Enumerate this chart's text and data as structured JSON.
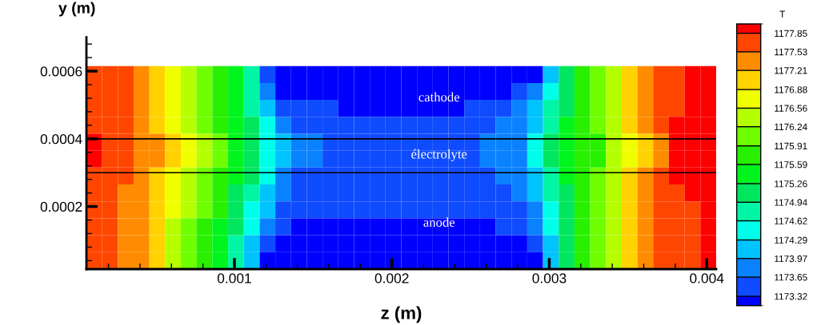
{
  "chart_data": {
    "type": "heatmap",
    "xlabel": "z (m)",
    "ylabel": "y (m)",
    "clabel": "T",
    "x": [
      0.00011,
      0.00021,
      0.00031,
      0.00041,
      0.00051,
      0.00061,
      0.00071,
      0.00081,
      0.00091,
      0.00101,
      0.00111,
      0.00121,
      0.00131,
      0.00141,
      0.00151,
      0.00161,
      0.00171,
      0.00181,
      0.00191,
      0.00201,
      0.00211,
      0.00221,
      0.00231,
      0.00241,
      0.00251,
      0.00261,
      0.00271,
      0.00281,
      0.00291,
      0.00301,
      0.00311,
      0.00321,
      0.00331,
      0.00341,
      0.00351,
      0.00361,
      0.00371,
      0.00381,
      0.00391,
      0.00401
    ],
    "y": [
      0.00059,
      0.00054,
      0.00049,
      0.00044,
      0.00039,
      0.00034,
      0.00029,
      0.00024,
      0.00019,
      0.00014,
      9e-05,
      4e-05
    ],
    "cells": [
      [
        1177.69,
        1177.69,
        1177.69,
        1177.37,
        1177.05,
        1176.72,
        1176.4,
        1176.08,
        1175.75,
        1175.43,
        1174.78,
        1173.49,
        1173.24,
        1173.24,
        1173.24,
        1173.24,
        1173.24,
        1173.24,
        1173.24,
        1173.24,
        1173.24,
        1173.24,
        1173.24,
        1173.24,
        1173.24,
        1173.24,
        1173.24,
        1173.24,
        1173.24,
        1174.13,
        1175.1,
        1175.75,
        1176.08,
        1176.4,
        1177.05,
        1177.37,
        1177.69,
        1177.69,
        1177.93,
        1177.93
      ],
      [
        1177.69,
        1177.69,
        1177.69,
        1177.37,
        1177.05,
        1176.72,
        1176.4,
        1176.08,
        1175.75,
        1175.43,
        1174.78,
        1173.81,
        1173.24,
        1173.24,
        1173.24,
        1173.24,
        1173.24,
        1173.24,
        1173.24,
        1173.24,
        1173.24,
        1173.24,
        1173.24,
        1173.24,
        1173.24,
        1173.24,
        1173.24,
        1173.49,
        1173.81,
        1174.46,
        1175.1,
        1175.75,
        1176.08,
        1176.4,
        1177.05,
        1177.37,
        1177.69,
        1177.69,
        1177.93,
        1177.93
      ],
      [
        1177.69,
        1177.69,
        1177.69,
        1177.37,
        1177.05,
        1176.72,
        1176.4,
        1176.08,
        1175.75,
        1175.43,
        1174.78,
        1174.13,
        1173.49,
        1173.49,
        1173.49,
        1173.49,
        1173.24,
        1173.24,
        1173.24,
        1173.24,
        1173.24,
        1173.24,
        1173.24,
        1173.24,
        1173.49,
        1173.49,
        1173.49,
        1173.81,
        1174.13,
        1174.78,
        1175.1,
        1175.75,
        1176.08,
        1176.4,
        1177.05,
        1177.37,
        1177.69,
        1177.69,
        1177.93,
        1177.93
      ],
      [
        1177.69,
        1177.69,
        1177.69,
        1177.37,
        1177.05,
        1176.72,
        1176.4,
        1176.08,
        1175.75,
        1175.43,
        1175.1,
        1174.46,
        1173.81,
        1173.49,
        1173.49,
        1173.49,
        1173.49,
        1173.49,
        1173.49,
        1173.49,
        1173.49,
        1173.49,
        1173.49,
        1173.49,
        1173.49,
        1173.49,
        1173.81,
        1173.81,
        1174.13,
        1174.78,
        1175.43,
        1175.75,
        1176.08,
        1176.4,
        1177.05,
        1177.37,
        1177.69,
        1177.93,
        1177.93,
        1177.93
      ],
      [
        1177.93,
        1177.69,
        1177.69,
        1177.37,
        1177.37,
        1177.05,
        1176.72,
        1176.4,
        1176.08,
        1175.43,
        1175.1,
        1174.46,
        1174.13,
        1173.81,
        1173.81,
        1173.49,
        1173.49,
        1173.49,
        1173.49,
        1173.49,
        1173.49,
        1173.49,
        1173.49,
        1173.49,
        1173.49,
        1173.81,
        1173.81,
        1173.81,
        1174.46,
        1175.1,
        1175.43,
        1175.75,
        1175.75,
        1176.4,
        1176.72,
        1177.05,
        1177.37,
        1177.93,
        1177.93,
        1177.93
      ],
      [
        1177.93,
        1177.69,
        1177.69,
        1177.37,
        1177.37,
        1177.05,
        1176.72,
        1176.4,
        1176.08,
        1175.43,
        1175.1,
        1174.46,
        1174.13,
        1173.81,
        1173.81,
        1173.49,
        1173.49,
        1173.49,
        1173.49,
        1173.49,
        1173.49,
        1173.49,
        1173.49,
        1173.49,
        1173.49,
        1173.81,
        1173.81,
        1173.81,
        1174.46,
        1175.1,
        1175.43,
        1175.75,
        1175.75,
        1176.4,
        1176.72,
        1177.05,
        1177.37,
        1177.93,
        1177.93,
        1177.93
      ],
      [
        1177.69,
        1177.69,
        1177.69,
        1177.37,
        1177.05,
        1176.72,
        1176.4,
        1176.08,
        1175.75,
        1175.43,
        1175.1,
        1174.46,
        1173.81,
        1173.49,
        1173.49,
        1173.49,
        1173.49,
        1173.49,
        1173.49,
        1173.49,
        1173.49,
        1173.49,
        1173.49,
        1173.49,
        1173.49,
        1173.49,
        1173.81,
        1173.81,
        1174.13,
        1174.78,
        1175.43,
        1175.75,
        1176.08,
        1176.4,
        1177.05,
        1177.37,
        1177.69,
        1177.93,
        1177.93,
        1177.93
      ],
      [
        1177.69,
        1177.69,
        1177.37,
        1177.37,
        1177.05,
        1176.72,
        1176.4,
        1176.08,
        1175.75,
        1175.1,
        1174.78,
        1174.13,
        1173.81,
        1173.49,
        1173.49,
        1173.49,
        1173.49,
        1173.49,
        1173.49,
        1173.49,
        1173.49,
        1173.49,
        1173.49,
        1173.49,
        1173.49,
        1173.49,
        1173.49,
        1173.81,
        1174.13,
        1174.78,
        1175.1,
        1175.75,
        1176.08,
        1176.4,
        1177.05,
        1177.37,
        1177.69,
        1177.69,
        1177.93,
        1177.93
      ],
      [
        1177.69,
        1177.69,
        1177.37,
        1177.37,
        1177.05,
        1176.72,
        1176.4,
        1176.08,
        1175.75,
        1175.1,
        1174.46,
        1174.13,
        1173.49,
        1173.49,
        1173.49,
        1173.49,
        1173.49,
        1173.49,
        1173.49,
        1173.49,
        1173.49,
        1173.49,
        1173.49,
        1173.49,
        1173.49,
        1173.49,
        1173.49,
        1173.49,
        1173.81,
        1174.46,
        1175.1,
        1175.75,
        1176.08,
        1176.4,
        1177.05,
        1177.37,
        1177.69,
        1177.69,
        1177.69,
        1177.93
      ],
      [
        1177.69,
        1177.69,
        1177.37,
        1177.37,
        1177.05,
        1176.4,
        1176.08,
        1175.75,
        1175.43,
        1175.1,
        1174.46,
        1173.81,
        1173.49,
        1173.24,
        1173.24,
        1173.24,
        1173.24,
        1173.24,
        1173.24,
        1173.24,
        1173.24,
        1173.24,
        1173.24,
        1173.24,
        1173.24,
        1173.24,
        1173.49,
        1173.49,
        1173.81,
        1174.46,
        1175.1,
        1175.75,
        1176.08,
        1176.4,
        1177.05,
        1177.37,
        1177.69,
        1177.69,
        1177.69,
        1177.93
      ],
      [
        1177.69,
        1177.69,
        1177.37,
        1177.37,
        1177.05,
        1176.4,
        1176.08,
        1175.75,
        1175.43,
        1174.78,
        1174.13,
        1173.49,
        1173.24,
        1173.24,
        1173.24,
        1173.24,
        1173.24,
        1173.24,
        1173.24,
        1173.24,
        1173.24,
        1173.24,
        1173.24,
        1173.24,
        1173.24,
        1173.24,
        1173.24,
        1173.24,
        1173.49,
        1174.13,
        1175.1,
        1175.75,
        1176.08,
        1176.4,
        1177.05,
        1177.37,
        1177.69,
        1177.69,
        1177.69,
        1177.93
      ],
      [
        1177.69,
        1177.69,
        1177.37,
        1177.37,
        1177.05,
        1176.4,
        1176.08,
        1175.75,
        1175.43,
        1174.78,
        1174.13,
        1173.24,
        1173.24,
        1173.24,
        1173.24,
        1173.24,
        1173.24,
        1173.24,
        1173.24,
        1173.24,
        1173.24,
        1173.24,
        1173.24,
        1173.24,
        1173.24,
        1173.24,
        1173.24,
        1173.24,
        1173.24,
        1174.13,
        1175.1,
        1175.75,
        1176.08,
        1176.4,
        1177.05,
        1177.37,
        1177.69,
        1177.69,
        1177.69,
        1177.93
      ]
    ],
    "colors": [
      "#0000ff",
      "#0f4bff",
      "#0a82ff",
      "#00c3ff",
      "#00ffeb",
      "#00f5a5",
      "#00e65f",
      "#00f51e",
      "#28f000",
      "#6eff00",
      "#b4ff00",
      "#f0ff00",
      "#ffd200",
      "#ff8c00",
      "#ff4600",
      "#ff0000"
    ],
    "clim": [
      1173.16,
      1178.01
    ],
    "cticks": [
      1173.32,
      1173.65,
      1173.97,
      1174.29,
      1174.62,
      1174.94,
      1175.26,
      1175.59,
      1175.91,
      1176.24,
      1176.56,
      1176.88,
      1177.21,
      1177.53,
      1177.85
    ],
    "xlim": [
      6e-05,
      0.00406
    ],
    "ylim": [
      1.5e-05,
      0.0007
    ],
    "xticks": [
      {
        "value": 0.0002,
        "label": null
      },
      {
        "value": 0.0004,
        "label": null
      },
      {
        "value": 0.0006,
        "label": null
      },
      {
        "value": 0.0008,
        "label": null
      },
      {
        "value": 0.001,
        "label": "0.001"
      },
      {
        "value": 0.0012,
        "label": null
      },
      {
        "value": 0.0014,
        "label": null
      },
      {
        "value": 0.0016,
        "label": null
      },
      {
        "value": 0.0018,
        "label": null
      },
      {
        "value": 0.002,
        "label": "0.002"
      },
      {
        "value": 0.0022,
        "label": null
      },
      {
        "value": 0.0024,
        "label": null
      },
      {
        "value": 0.0026,
        "label": null
      },
      {
        "value": 0.0028,
        "label": null
      },
      {
        "value": 0.003,
        "label": "0.003"
      },
      {
        "value": 0.0032,
        "label": null
      },
      {
        "value": 0.0034,
        "label": null
      },
      {
        "value": 0.0036,
        "label": null
      },
      {
        "value": 0.0038,
        "label": null
      },
      {
        "value": 0.004,
        "label": "0.004"
      }
    ],
    "yticks": [
      {
        "value": 4e-05,
        "label": null
      },
      {
        "value": 8e-05,
        "label": null
      },
      {
        "value": 0.00012,
        "label": null
      },
      {
        "value": 0.00016,
        "label": null
      },
      {
        "value": 0.0002,
        "label": "0.0002"
      },
      {
        "value": 0.00024,
        "label": null
      },
      {
        "value": 0.00028,
        "label": null
      },
      {
        "value": 0.00032,
        "label": null
      },
      {
        "value": 0.00036,
        "label": null
      },
      {
        "value": 0.0004,
        "label": "0.0004"
      },
      {
        "value": 0.00044,
        "label": null
      },
      {
        "value": 0.00048,
        "label": null
      },
      {
        "value": 0.00052,
        "label": null
      },
      {
        "value": 0.00056,
        "label": null
      },
      {
        "value": 0.0006,
        "label": "0.0006"
      },
      {
        "value": 0.00064,
        "label": null
      },
      {
        "value": 0.00068,
        "label": null
      }
    ],
    "ref_lines": [
      {
        "axis": "y",
        "value": 0.0004,
        "color": "#000000"
      },
      {
        "axis": "y",
        "value": 0.0003,
        "color": "#000000"
      }
    ],
    "annotations": [
      "cathode",
      "électrolyte",
      "anode"
    ]
  }
}
